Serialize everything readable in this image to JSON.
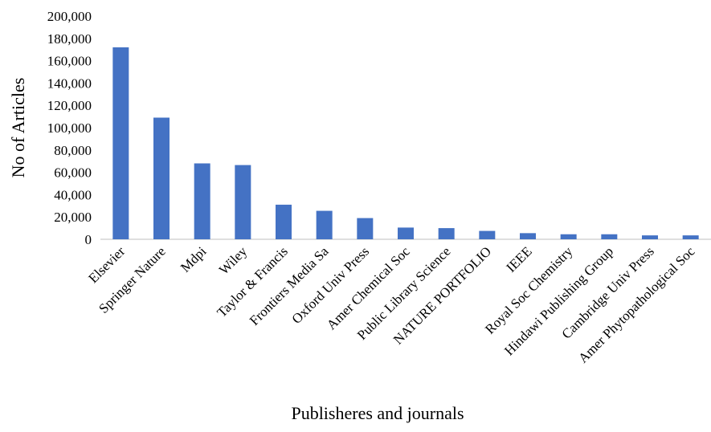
{
  "chart_data": {
    "type": "bar",
    "title": "",
    "xlabel": "Publisheres and journals",
    "ylabel": "No of Articles",
    "ylim": [
      0,
      200000
    ],
    "yticks": [
      {
        "value": 0,
        "label": "0"
      },
      {
        "value": 20000,
        "label": "20,000"
      },
      {
        "value": 40000,
        "label": "40,000"
      },
      {
        "value": 60000,
        "label": "60,000"
      },
      {
        "value": 80000,
        "label": "80,000"
      },
      {
        "value": 100000,
        "label": "100,000"
      },
      {
        "value": 120000,
        "label": "120,000"
      },
      {
        "value": 140000,
        "label": "140,000"
      },
      {
        "value": 160000,
        "label": "160,000"
      },
      {
        "value": 180000,
        "label": "180,000"
      },
      {
        "value": 200000,
        "label": "200,000"
      }
    ],
    "categories": [
      "Elsevier",
      "Springer Nature",
      "Mdpi",
      "Wiley",
      "Taylor & Francis",
      "Frontiers Media Sa",
      "Oxford Univ Press",
      "Amer Chemical Soc",
      "Public Library Science",
      "NATURE PORTFOLIO",
      "IEEE",
      "Royal Soc Chemistry",
      "Hindawi Publishing Group",
      "Cambridge Univ Press",
      "Amer Phytopathological Soc"
    ],
    "values": [
      172000,
      109000,
      68000,
      66500,
      31000,
      25500,
      19000,
      10500,
      10000,
      7500,
      5500,
      4500,
      4500,
      3500,
      3500
    ],
    "bar_color": "#4472C4",
    "grid": false,
    "legend": "none"
  }
}
